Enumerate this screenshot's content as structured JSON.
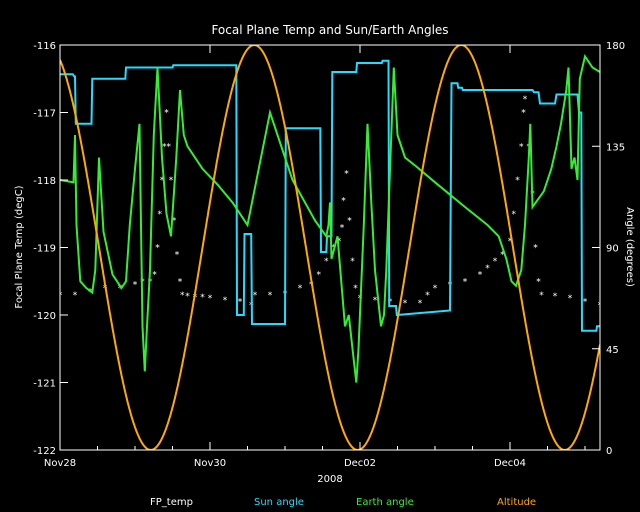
{
  "chart_data": {
    "type": "line",
    "title": "Focal Plane Temp and Sun/Earth Angles",
    "xlabel": "2008",
    "ylabel_left": "Focal Plane Temp (degC)",
    "ylabel_right": "Angle (degrees)",
    "x_unit": "days since Nov28 2008 00:00",
    "xlim": [
      0,
      7.2
    ],
    "x_ticks": [
      {
        "x": 0,
        "label": "Nov28"
      },
      {
        "x": 2,
        "label": "Nov30"
      },
      {
        "x": 4,
        "label": "Dec02"
      },
      {
        "x": 6,
        "label": "Dec04"
      }
    ],
    "ylim_left": [
      -122,
      -116
    ],
    "y_ticks_left": [
      -122,
      -121,
      -120,
      -119,
      -118,
      -117,
      -116
    ],
    "ylim_right": [
      0,
      180
    ],
    "y_ticks_right": [
      0,
      45,
      90,
      135,
      180
    ],
    "colors": {
      "fp_temp": "#ffffff",
      "sun": "#22ddff",
      "earth": "#33ee33",
      "altitude": "#ffaa00",
      "background": "#000000",
      "axes": "#ffffff"
    },
    "legend": [
      {
        "name": "FP_temp",
        "color": "#ffffff"
      },
      {
        "name": "Sun angle",
        "color": "#22ddff"
      },
      {
        "name": "Earth angle",
        "color": "#33ee33"
      },
      {
        "name": "Altitude",
        "color": "#ffaa00"
      }
    ],
    "series": [
      {
        "name": "FP_temp",
        "axis": "left",
        "style": "markers",
        "points": [
          [
            0.0,
            -119.7
          ],
          [
            0.2,
            -119.7
          ],
          [
            0.4,
            -119.65
          ],
          [
            0.6,
            -119.6
          ],
          [
            0.8,
            -119.6
          ],
          [
            1.0,
            -119.55
          ],
          [
            1.1,
            -119.5
          ],
          [
            1.2,
            -119.5
          ],
          [
            1.26,
            -119.4
          ],
          [
            1.3,
            -119.0
          ],
          [
            1.33,
            -118.5
          ],
          [
            1.36,
            -118.0
          ],
          [
            1.39,
            -117.5
          ],
          [
            1.42,
            -117.0
          ],
          [
            1.45,
            -117.5
          ],
          [
            1.48,
            -118.0
          ],
          [
            1.52,
            -118.6
          ],
          [
            1.56,
            -119.1
          ],
          [
            1.6,
            -119.5
          ],
          [
            1.63,
            -119.7
          ],
          [
            1.7,
            -119.72
          ],
          [
            1.8,
            -119.73
          ],
          [
            1.9,
            -119.73
          ],
          [
            2.0,
            -119.75
          ],
          [
            2.2,
            -119.78
          ],
          [
            2.4,
            -119.8
          ],
          [
            2.55,
            -119.85
          ],
          [
            2.6,
            -119.7
          ],
          [
            2.8,
            -119.7
          ],
          [
            3.0,
            -119.68
          ],
          [
            3.2,
            -119.6
          ],
          [
            3.35,
            -119.55
          ],
          [
            3.45,
            -119.4
          ],
          [
            3.55,
            -119.2
          ],
          [
            3.65,
            -119.0
          ],
          [
            3.72,
            -118.9
          ],
          [
            3.76,
            -118.7
          ],
          [
            3.78,
            -118.3
          ],
          [
            3.82,
            -117.9
          ],
          [
            3.86,
            -118.6
          ],
          [
            3.9,
            -119.2
          ],
          [
            3.94,
            -119.6
          ],
          [
            4.0,
            -119.75
          ],
          [
            4.2,
            -119.78
          ],
          [
            4.4,
            -119.8
          ],
          [
            4.6,
            -119.82
          ],
          [
            4.8,
            -119.82
          ],
          [
            4.9,
            -119.7
          ],
          [
            5.0,
            -119.6
          ],
          [
            5.2,
            -119.55
          ],
          [
            5.4,
            -119.5
          ],
          [
            5.6,
            -119.4
          ],
          [
            5.7,
            -119.3
          ],
          [
            5.8,
            -119.2
          ],
          [
            5.9,
            -119.1
          ],
          [
            6.0,
            -118.9
          ],
          [
            6.05,
            -118.5
          ],
          [
            6.1,
            -118.0
          ],
          [
            6.15,
            -117.5
          ],
          [
            6.18,
            -117.0
          ],
          [
            6.2,
            -116.8
          ],
          [
            6.25,
            -117.5
          ],
          [
            6.3,
            -118.2
          ],
          [
            6.34,
            -119.0
          ],
          [
            6.38,
            -119.5
          ],
          [
            6.42,
            -119.7
          ],
          [
            6.6,
            -119.72
          ],
          [
            6.8,
            -119.75
          ],
          [
            7.0,
            -119.8
          ],
          [
            7.2,
            -119.85
          ]
        ]
      },
      {
        "name": "Sun angle",
        "axis": "right",
        "points": [
          [
            0.0,
            167
          ],
          [
            0.17,
            167
          ],
          [
            0.19,
            166
          ],
          [
            0.2,
            166
          ],
          [
            0.21,
            145
          ],
          [
            0.42,
            145
          ],
          [
            0.43,
            165
          ],
          [
            0.87,
            165
          ],
          [
            0.88,
            170
          ],
          [
            1.5,
            170
          ],
          [
            1.51,
            171
          ],
          [
            2.35,
            171
          ],
          [
            2.36,
            60
          ],
          [
            2.45,
            60
          ],
          [
            2.46,
            96
          ],
          [
            2.55,
            96
          ],
          [
            2.56,
            56
          ],
          [
            2.65,
            56
          ],
          [
            2.66,
            56
          ],
          [
            3.0,
            56
          ],
          [
            3.01,
            143
          ],
          [
            3.47,
            143
          ],
          [
            3.48,
            88
          ],
          [
            3.55,
            88
          ],
          [
            3.56,
            95
          ],
          [
            3.62,
            95
          ],
          [
            3.63,
            168
          ],
          [
            3.95,
            168
          ],
          [
            3.96,
            172
          ],
          [
            4.29,
            172
          ],
          [
            4.3,
            173
          ],
          [
            4.38,
            173
          ],
          [
            4.39,
            64
          ],
          [
            4.48,
            64
          ],
          [
            4.49,
            60
          ],
          [
            5.2,
            62
          ],
          [
            5.22,
            163
          ],
          [
            5.3,
            163
          ],
          [
            5.31,
            161
          ],
          [
            5.36,
            161
          ],
          [
            5.37,
            160
          ],
          [
            5.6,
            160
          ],
          [
            5.62,
            160
          ],
          [
            6.3,
            160
          ],
          [
            6.32,
            159
          ],
          [
            6.38,
            159
          ],
          [
            6.4,
            154
          ],
          [
            6.6,
            154
          ],
          [
            6.62,
            158
          ],
          [
            6.9,
            158
          ],
          [
            6.92,
            150
          ],
          [
            6.95,
            150
          ],
          [
            6.96,
            53
          ],
          [
            7.15,
            53
          ],
          [
            7.16,
            55
          ],
          [
            7.2,
            55
          ]
        ]
      },
      {
        "name": "Earth angle",
        "axis": "right",
        "points": [
          [
            0.0,
            120
          ],
          [
            0.18,
            119
          ],
          [
            0.2,
            140
          ],
          [
            0.22,
            100
          ],
          [
            0.27,
            75
          ],
          [
            0.35,
            72
          ],
          [
            0.43,
            70
          ],
          [
            0.47,
            80
          ],
          [
            0.52,
            130
          ],
          [
            0.58,
            97
          ],
          [
            0.7,
            78
          ],
          [
            0.82,
            72
          ],
          [
            0.88,
            75
          ],
          [
            0.93,
            100
          ],
          [
            1.0,
            125
          ],
          [
            1.06,
            145
          ],
          [
            1.1,
            55
          ],
          [
            1.13,
            35
          ],
          [
            1.16,
            55
          ],
          [
            1.2,
            80
          ],
          [
            1.25,
            140
          ],
          [
            1.3,
            170
          ],
          [
            1.36,
            130
          ],
          [
            1.42,
            105
          ],
          [
            1.48,
            95
          ],
          [
            1.55,
            130
          ],
          [
            1.6,
            160
          ],
          [
            1.65,
            140
          ],
          [
            1.7,
            135
          ],
          [
            1.9,
            125
          ],
          [
            2.1,
            118
          ],
          [
            2.3,
            110
          ],
          [
            2.5,
            100
          ],
          [
            2.8,
            150
          ],
          [
            3.1,
            120
          ],
          [
            3.4,
            102
          ],
          [
            3.55,
            95
          ],
          [
            3.58,
            100
          ],
          [
            3.6,
            110
          ],
          [
            3.62,
            85
          ],
          [
            3.7,
            95
          ],
          [
            3.8,
            55
          ],
          [
            3.85,
            60
          ],
          [
            3.9,
            45
          ],
          [
            3.95,
            30
          ],
          [
            3.98,
            45
          ],
          [
            4.05,
            100
          ],
          [
            4.1,
            145
          ],
          [
            4.15,
            110
          ],
          [
            4.2,
            80
          ],
          [
            4.28,
            55
          ],
          [
            4.32,
            60
          ],
          [
            4.35,
            80
          ],
          [
            4.45,
            170
          ],
          [
            4.5,
            140
          ],
          [
            4.6,
            130
          ],
          [
            4.75,
            126
          ],
          [
            5.0,
            119
          ],
          [
            5.4,
            108
          ],
          [
            5.7,
            100
          ],
          [
            5.85,
            95
          ],
          [
            5.95,
            85
          ],
          [
            6.02,
            75
          ],
          [
            6.08,
            73
          ],
          [
            6.15,
            80
          ],
          [
            6.2,
            100
          ],
          [
            6.25,
            130
          ],
          [
            6.27,
            145
          ],
          [
            6.3,
            108
          ],
          [
            6.45,
            115
          ],
          [
            6.55,
            125
          ],
          [
            6.62,
            135
          ],
          [
            6.68,
            145
          ],
          [
            6.75,
            160
          ],
          [
            6.78,
            170
          ],
          [
            6.82,
            125
          ],
          [
            6.86,
            130
          ],
          [
            6.9,
            120
          ],
          [
            6.93,
            165
          ],
          [
            7.0,
            175
          ],
          [
            7.1,
            170
          ],
          [
            7.2,
            168
          ]
        ]
      },
      {
        "name": "Altitude",
        "axis": "right",
        "style": "sine",
        "model": {
          "period": 2.76,
          "t_min": 1.21,
          "min": 0,
          "max": 180
        }
      }
    ]
  }
}
